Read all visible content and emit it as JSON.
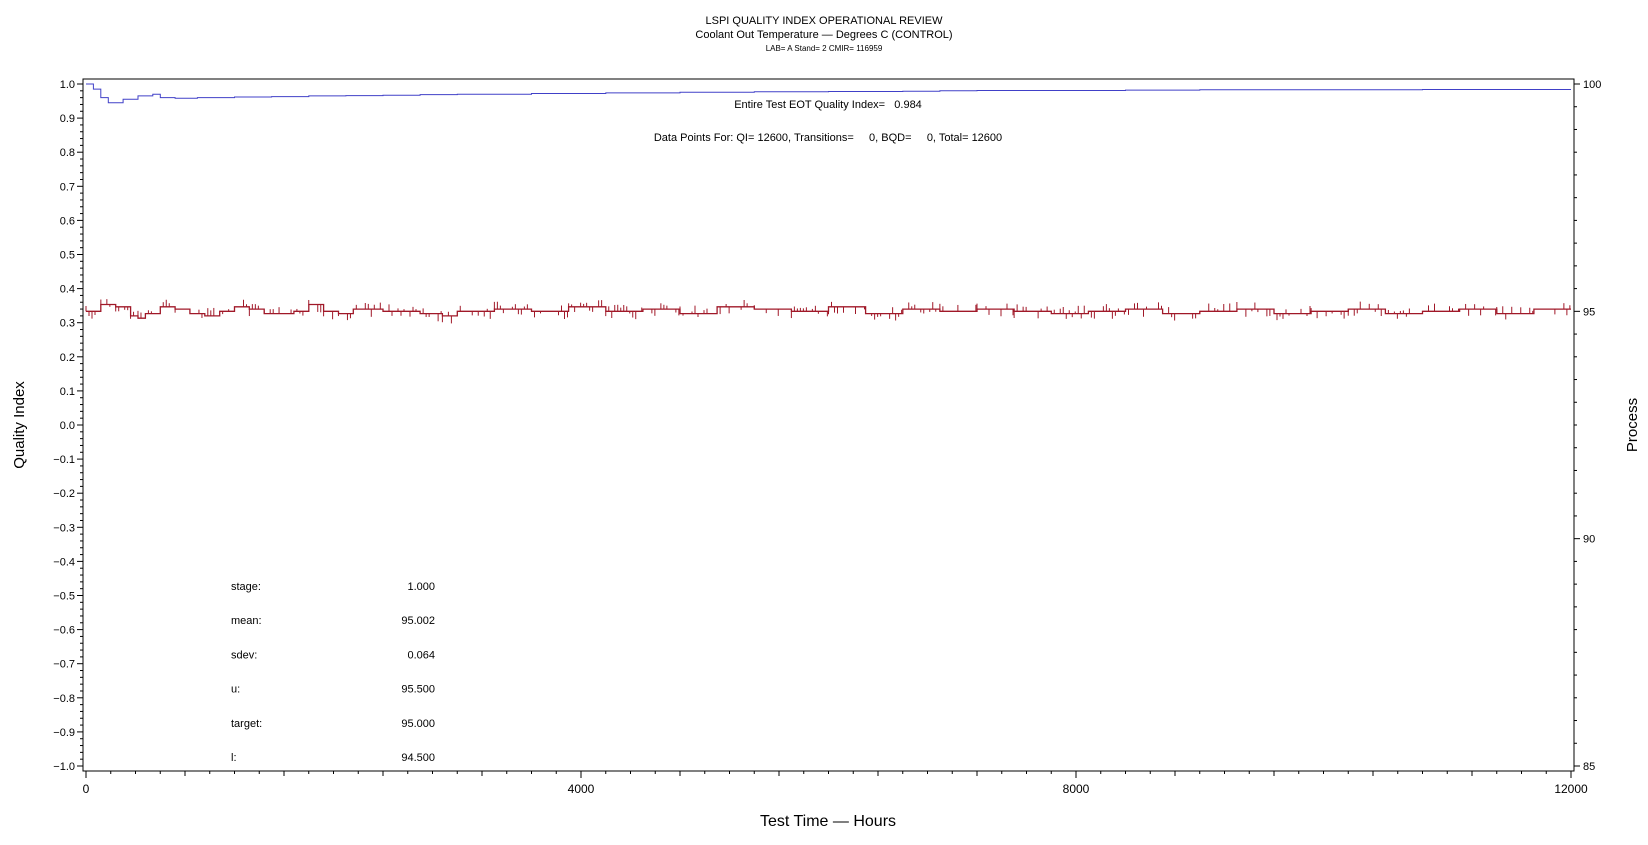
{
  "header": {
    "title": "LSPI QUALITY INDEX OPERATIONAL REVIEW",
    "subtitle": "Coolant Out Temperature — Degrees C (CONTROL)",
    "info": "LAB= A Stand= 2 CMIR= 116959"
  },
  "annotations": {
    "quality_index": "Entire Test EOT Quality Index=   0.984",
    "data_points": "Data Points For: QI= 12600, Transitions=     0, BQD=     0, Total= 12600"
  },
  "stats": [
    {
      "label": "stage:",
      "value": "1.000"
    },
    {
      "label": "mean:",
      "value": "95.002"
    },
    {
      "label": "sdev:",
      "value": "0.064"
    },
    {
      "label": "u:",
      "value": "95.500"
    },
    {
      "label": "target:",
      "value": "95.000"
    },
    {
      "label": "l:",
      "value": "94.500"
    }
  ],
  "chart_data": {
    "type": "line",
    "xlabel": "Test Time — Hours",
    "ylabel_left": "Quality Index",
    "ylabel_right": "Process",
    "xlim": [
      0,
      12000
    ],
    "ylim_left": [
      -1.0,
      1.0
    ],
    "ylim_right": [
      85,
      100
    ],
    "x_ticks": [
      0,
      4000,
      8000,
      12000
    ],
    "y_left_ticks": [
      1.0,
      0.9,
      0.8,
      0.7,
      0.6,
      0.5,
      0.4,
      0.3,
      0.2,
      0.1,
      0.0,
      -0.1,
      -0.2,
      -0.3,
      -0.4,
      -0.5,
      -0.6,
      -0.7,
      -0.8,
      -0.9,
      -1.0
    ],
    "y_right_ticks": [
      100,
      95,
      90,
      85
    ],
    "series": [
      {
        "color": "#4040c8",
        "axis": "left",
        "x": [
          0,
          60,
          120,
          180,
          300,
          420,
          540,
          600,
          720,
          900,
          1200,
          1500,
          1800,
          2100,
          2400,
          2700,
          3000,
          3600,
          4200,
          4800,
          5400,
          6000,
          6600,
          6900,
          7200,
          7800,
          8400,
          9000,
          9600,
          10200,
          10800,
          11400,
          12000
        ],
        "y": [
          1.0,
          0.985,
          0.96,
          0.945,
          0.955,
          0.965,
          0.97,
          0.96,
          0.958,
          0.96,
          0.962,
          0.963,
          0.965,
          0.966,
          0.967,
          0.969,
          0.97,
          0.972,
          0.974,
          0.976,
          0.977,
          0.978,
          0.979,
          0.98,
          0.981,
          0.981,
          0.982,
          0.983,
          0.983,
          0.983,
          0.984,
          0.984,
          0.984
        ]
      },
      {
        "color": "#a01828",
        "axis": "right",
        "x": [
          0,
          120,
          240,
          360,
          420,
          480,
          600,
          720,
          840,
          960,
          1080,
          1200,
          1320,
          1440,
          1560,
          1680,
          1800,
          1920,
          2040,
          2160,
          2400,
          2700,
          2880,
          3000,
          3300,
          3600,
          3900,
          4200,
          4500,
          4800,
          5100,
          5400,
          5700,
          6000,
          6300,
          6600,
          6900,
          7200,
          7500,
          7800,
          8100,
          8400,
          8700,
          9000,
          9300,
          9600,
          9900,
          10200,
          10500,
          10800,
          11100,
          11400,
          11700,
          12000
        ],
        "y": [
          95.0,
          95.15,
          95.1,
          94.9,
          94.85,
          94.95,
          95.1,
          95.05,
          94.95,
          94.9,
          95.0,
          95.1,
          95.05,
          94.95,
          94.95,
          95.0,
          95.15,
          95.0,
          94.95,
          95.05,
          95.0,
          94.95,
          94.9,
          95.0,
          95.05,
          95.0,
          95.1,
          95.0,
          95.05,
          94.95,
          95.1,
          95.05,
          95.0,
          95.1,
          94.95,
          95.05,
          95.0,
          95.05,
          95.0,
          94.95,
          95.0,
          95.05,
          94.95,
          95.0,
          95.05,
          94.95,
          95.0,
          95.05,
          94.95,
          95.0,
          95.05,
          94.95,
          95.05,
          95.05
        ]
      }
    ]
  }
}
